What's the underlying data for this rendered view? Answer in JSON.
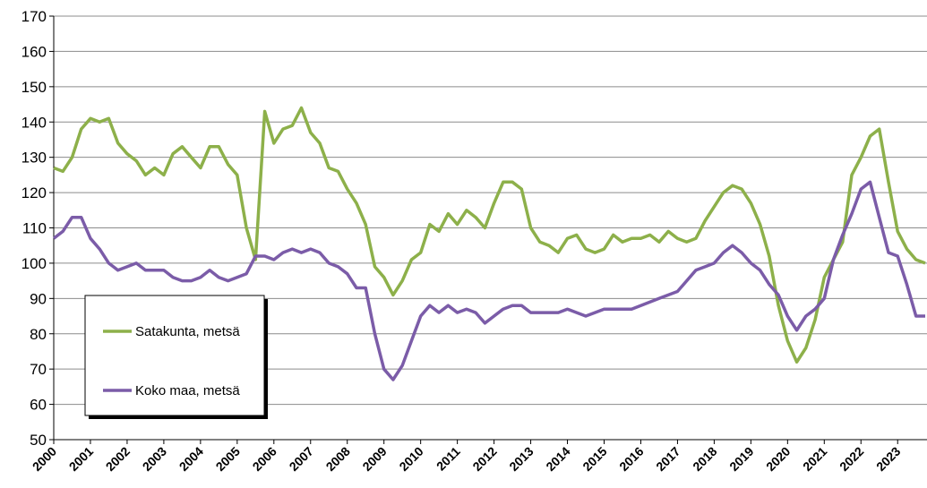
{
  "chart_data": {
    "type": "line",
    "x": [
      2000,
      2000.25,
      2000.5,
      2000.75,
      2001,
      2001.25,
      2001.5,
      2001.75,
      2002,
      2002.25,
      2002.5,
      2002.75,
      2003,
      2003.25,
      2003.5,
      2003.75,
      2004,
      2004.25,
      2004.5,
      2004.75,
      2005,
      2005.25,
      2005.5,
      2005.75,
      2006,
      2006.25,
      2006.5,
      2006.75,
      2007,
      2007.25,
      2007.5,
      2007.75,
      2008,
      2008.25,
      2008.5,
      2008.75,
      2009,
      2009.25,
      2009.5,
      2009.75,
      2010,
      2010.25,
      2010.5,
      2010.75,
      2011,
      2011.25,
      2011.5,
      2011.75,
      2012,
      2012.25,
      2012.5,
      2012.75,
      2013,
      2013.25,
      2013.5,
      2013.75,
      2014,
      2014.25,
      2014.5,
      2014.75,
      2015,
      2015.25,
      2015.5,
      2015.75,
      2016,
      2016.25,
      2016.5,
      2016.75,
      2017,
      2017.25,
      2017.5,
      2017.75,
      2018,
      2018.25,
      2018.5,
      2018.75,
      2019,
      2019.25,
      2019.5,
      2019.75,
      2020,
      2020.25,
      2020.5,
      2020.75,
      2021,
      2021.25,
      2021.5,
      2021.75,
      2022,
      2022.25,
      2022.5,
      2022.75,
      2023,
      2023.25,
      2023.5,
      2023.75
    ],
    "series": [
      {
        "name": "Satakunta, metsä",
        "color": "#8db04a",
        "values": [
          127,
          126,
          130,
          138,
          141,
          140,
          141,
          134,
          131,
          129,
          125,
          127,
          125,
          131,
          133,
          130,
          127,
          133,
          133,
          128,
          125,
          110,
          101,
          143,
          134,
          138,
          139,
          144,
          137,
          134,
          127,
          126,
          121,
          117,
          111,
          99,
          96,
          91,
          95,
          101,
          103,
          111,
          109,
          114,
          111,
          115,
          113,
          110,
          117,
          123,
          123,
          121,
          110,
          106,
          105,
          103,
          107,
          108,
          104,
          103,
          104,
          108,
          106,
          107,
          107,
          108,
          106,
          109,
          107,
          106,
          107,
          112,
          116,
          120,
          122,
          121,
          117,
          111,
          102,
          88,
          78,
          72,
          76,
          84,
          96,
          101,
          106,
          125,
          130,
          136,
          138,
          123,
          109,
          104,
          101,
          100
        ]
      },
      {
        "name": "Koko maa, metsä",
        "color": "#7b5ca8",
        "values": [
          107,
          109,
          113,
          113,
          107,
          104,
          100,
          98,
          99,
          100,
          98,
          98,
          98,
          96,
          95,
          95,
          96,
          98,
          96,
          95,
          96,
          97,
          102,
          102,
          101,
          103,
          104,
          103,
          104,
          103,
          100,
          99,
          97,
          93,
          93,
          80,
          70,
          67,
          71,
          78,
          85,
          88,
          86,
          88,
          86,
          87,
          86,
          83,
          85,
          87,
          88,
          88,
          86,
          86,
          86,
          86,
          87,
          86,
          85,
          86,
          87,
          87,
          87,
          87,
          88,
          89,
          90,
          91,
          92,
          95,
          98,
          99,
          100,
          103,
          105,
          103,
          100,
          98,
          94,
          91,
          85,
          81,
          85,
          87,
          90,
          101,
          108,
          114,
          121,
          123,
          113,
          103,
          102,
          94,
          85,
          85
        ]
      }
    ],
    "xlim": [
      2000,
      2023.8
    ],
    "xticks": [
      2000,
      2001,
      2002,
      2003,
      2004,
      2005,
      2006,
      2007,
      2008,
      2009,
      2010,
      2011,
      2012,
      2013,
      2014,
      2015,
      2016,
      2017,
      2018,
      2019,
      2020,
      2021,
      2022,
      2023
    ],
    "ylim": [
      50,
      170
    ],
    "yticks": [
      50,
      60,
      70,
      80,
      90,
      100,
      110,
      120,
      130,
      140,
      150,
      160,
      170
    ],
    "grid": true
  }
}
